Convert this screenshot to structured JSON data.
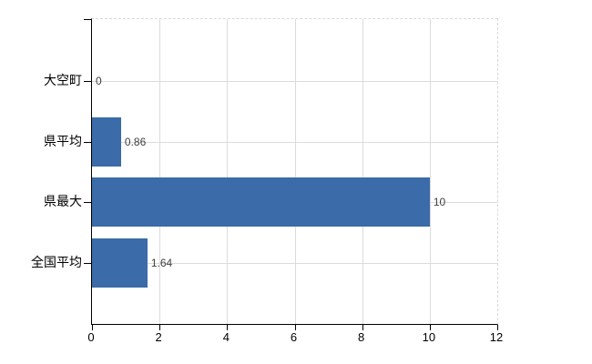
{
  "chart_data": {
    "type": "bar",
    "orientation": "horizontal",
    "title": "",
    "xlabel": "",
    "ylabel": "",
    "categories": [
      "大空町",
      "県平均",
      "県最大",
      "全国平均"
    ],
    "values": [
      0,
      0.86,
      10,
      1.64
    ],
    "value_labels": [
      "0",
      "0.86",
      "10",
      "1.64"
    ],
    "xlim": [
      0,
      12
    ],
    "xticks": [
      0,
      2,
      4,
      6,
      8,
      10,
      12
    ],
    "xtick_labels": [
      "0",
      "2",
      "4",
      "6",
      "8",
      "10",
      "12"
    ],
    "grid": true,
    "legend": false,
    "colors": {
      "bar": "#3b6ba8",
      "axis": "#000000",
      "gridline": "#dcdcdc",
      "background": "#ffffff",
      "value_label": "#3f3f3f",
      "tick_label": "#000000"
    }
  }
}
